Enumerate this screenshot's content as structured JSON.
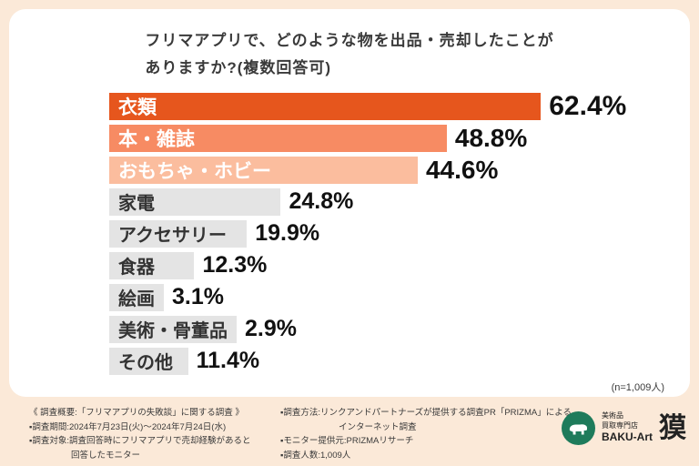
{
  "page": {
    "background": "#fbe9d8",
    "card_background": "#ffffff"
  },
  "chart_data": {
    "type": "bar",
    "orientation": "horizontal",
    "title": "フリマアプリで、どのような物を出品・売却したことがありますか?(複数回答可)",
    "title_lines": [
      "フリマアプリで、どのような物を出品・売却したことが",
      "ありますか?(複数回答可)"
    ],
    "categories": [
      "衣類",
      "本・雑誌",
      "おもちゃ・ホビー",
      "家電",
      "アクセサリー",
      "食器",
      "絵画",
      "美術・骨董品",
      "その他"
    ],
    "values": [
      62.4,
      48.8,
      44.6,
      24.8,
      19.9,
      12.3,
      3.1,
      2.9,
      11.4
    ],
    "value_labels": [
      "62.4%",
      "48.8%",
      "44.6%",
      "24.8%",
      "19.9%",
      "12.3%",
      "3.1%",
      "2.9%",
      "11.4%"
    ],
    "bar_colors": [
      "#e6561d",
      "#f78b63",
      "#fbbd9e",
      "#e4e4e4",
      "#e4e4e4",
      "#e4e4e4",
      "#e4e4e4",
      "#e4e4e4",
      "#e4e4e4"
    ],
    "label_text_colors": [
      "#ffffff",
      "#ffffff",
      "#ffffff",
      "#333333",
      "#333333",
      "#333333",
      "#333333",
      "#333333",
      "#333333"
    ],
    "xlim": [
      0,
      66
    ],
    "unit": "%",
    "grid": false,
    "legend": false,
    "sample_note": "(n=1,009人)"
  },
  "footer": {
    "survey_overview_lines": [
      "《 調査概要:「フリマアプリの失敗談」に関する調査 》",
      "▪調査期間:2024年7月23日(火)〜2024年7月24日(水)",
      "▪調査対象:調査回答時にフリマアプリで売却経験があると",
      "回答したモニター"
    ],
    "survey_method_lines": [
      "▪調査方法:リンクアンドパートナーズが提供する調査PR「PRIZMA」による",
      "インターネット調査",
      "▪モニター提供元:PRIZMAリサーチ",
      "▪調査人数:1,009人"
    ]
  },
  "logo": {
    "line1": "美術品",
    "line2": "買取専門店",
    "brand": "BAKU-Art",
    "kanji": "獏"
  }
}
